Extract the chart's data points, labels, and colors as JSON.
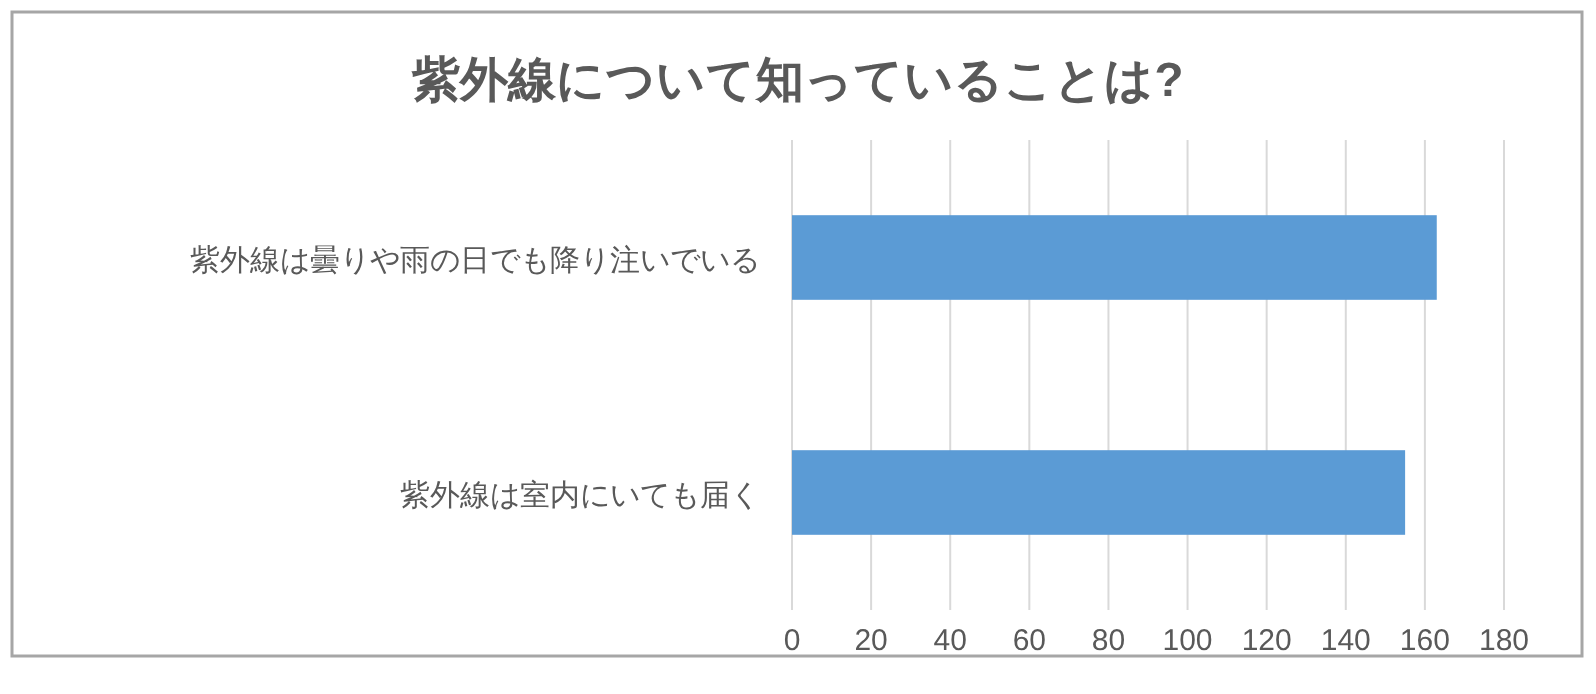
{
  "chart_data": {
    "type": "bar",
    "orientation": "horizontal",
    "title": "紫外線について知っていることは?",
    "categories": [
      "紫外線は曇りや雨の日でも降り注いでいる",
      "紫外線は室内にいても届く"
    ],
    "values": [
      163,
      155
    ],
    "color": "#5b9bd5",
    "xlim": [
      0,
      180
    ],
    "xticks": [
      0,
      20,
      40,
      60,
      80,
      100,
      120,
      140,
      160,
      180
    ],
    "grid": "x"
  }
}
